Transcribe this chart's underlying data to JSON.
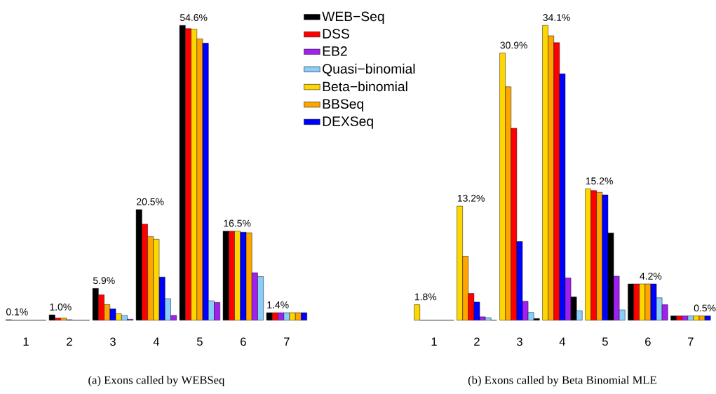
{
  "chart_data": [
    {
      "type": "bar",
      "categories": [
        "1",
        "2",
        "3",
        "4",
        "5",
        "6",
        "7"
      ],
      "legend": "top right",
      "annotations": [
        "(a) Exons called by WEBSeq"
      ],
      "series": [
        {
          "name": "WEB−Seq",
          "color": "#000000",
          "values": [
            0.1,
            1.0,
            5.9,
            20.5,
            54.6,
            16.5,
            1.4
          ],
          "value_labels": [
            "0.1%",
            "1.0%",
            "5.9%",
            "20.5%",
            "54.6%",
            "16.5%",
            "1.4%"
          ]
        },
        {
          "name": "DSS",
          "color": "#ff0000",
          "values": [
            0,
            0.4,
            4.7,
            17.8,
            54.0,
            16.5,
            1.4
          ]
        },
        {
          "name": "EB2",
          "color": "#a020f0",
          "values": [
            0,
            0,
            0.2,
            0.9,
            3.3,
            8.8,
            1.4
          ]
        },
        {
          "name": "Quasi−binomial",
          "color": "#87cefa",
          "values": [
            0,
            0,
            0.9,
            4.0,
            3.6,
            8.1,
            1.4
          ]
        },
        {
          "name": "Beta−binomial",
          "color": "#ffd700",
          "values": [
            0,
            0,
            1.2,
            15.0,
            53.9,
            16.5,
            1.4
          ]
        },
        {
          "name": "BBSeq",
          "color": "#ffa500",
          "values": [
            0,
            0.4,
            2.9,
            15.5,
            52.1,
            16.2,
            1.4
          ]
        },
        {
          "name": "DEXSeq",
          "color": "#0000ff",
          "values": [
            0,
            0.1,
            2.1,
            8.0,
            51.3,
            16.3,
            1.4
          ]
        }
      ]
    },
    {
      "type": "bar",
      "categories": [
        "1",
        "2",
        "3",
        "4",
        "5",
        "6",
        "7"
      ],
      "annotations": [
        "(b) Exons called by Beta Binomial MLE"
      ],
      "series": [
        {
          "color": "#000000",
          "values": [
            0,
            0,
            0.2,
            2.7,
            10.1,
            4.2,
            0.5
          ]
        },
        {
          "color": "#ff0000",
          "values": [
            0,
            3.1,
            22.2,
            32.1,
            15.0,
            4.2,
            0.5
          ]
        },
        {
          "color": "#a020f0",
          "values": [
            0,
            0.4,
            2.2,
            4.9,
            5.1,
            1.8,
            0.5
          ]
        },
        {
          "color": "#87cefa",
          "values": [
            0,
            0.3,
            0.9,
            1.1,
            1.2,
            2.6,
            0.5
          ]
        },
        {
          "color": "#ffd700",
          "values": [
            1.8,
            13.2,
            30.9,
            34.1,
            15.2,
            4.2,
            0.5
          ],
          "value_labels": [
            "1.8%",
            "13.2%",
            "30.9%",
            "34.1%",
            "15.2%",
            "4.2%",
            "0.5%"
          ]
        },
        {
          "color": "#ffa500",
          "values": [
            0,
            7.4,
            27.0,
            32.9,
            14.8,
            4.2,
            0.5
          ]
        },
        {
          "color": "#0000ff",
          "values": [
            0,
            2.1,
            9.1,
            28.5,
            14.5,
            4.2,
            0.5
          ]
        }
      ]
    }
  ]
}
